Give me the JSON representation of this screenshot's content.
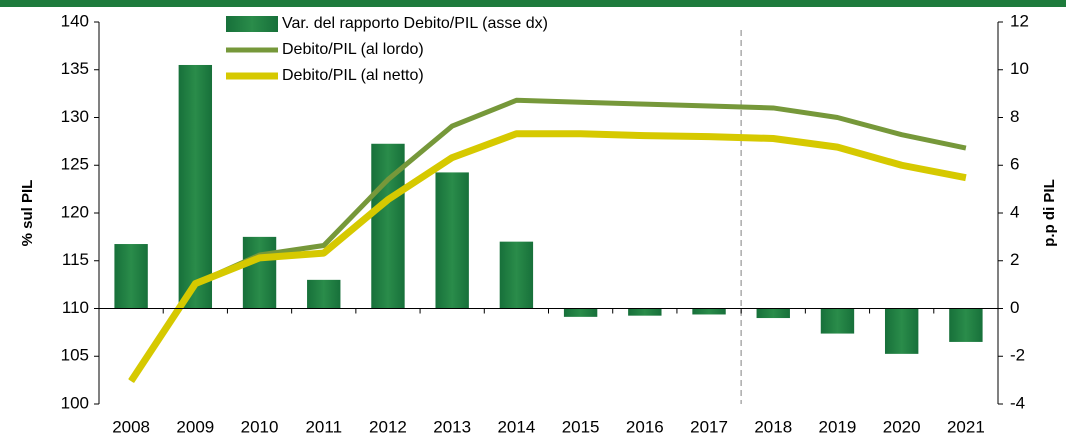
{
  "chart_data": {
    "type": "bar_line",
    "categories": [
      "2008",
      "2009",
      "2010",
      "2011",
      "2012",
      "2013",
      "2014",
      "2015",
      "2016",
      "2017",
      "2018",
      "2019",
      "2020",
      "2021"
    ],
    "series": [
      {
        "name": "Var. del rapporto Debito/PIL (asse dx)",
        "color": "#1e7b3c",
        "axis": "y2",
        "kind": "bar",
        "values": [
          2.7,
          10.2,
          3.0,
          1.2,
          6.9,
          5.7,
          2.8,
          -0.35,
          -0.3,
          -0.25,
          -0.4,
          -1.05,
          -1.9,
          -1.4
        ]
      },
      {
        "name": "Debito/PIL (al lordo)",
        "color": "#76983a",
        "axis": "y",
        "kind": "line",
        "values": [
          102.4,
          112.6,
          115.6,
          116.6,
          123.5,
          129.1,
          131.8,
          131.6,
          131.4,
          131.2,
          131.0,
          130.0,
          128.2,
          126.8
        ]
      },
      {
        "name": "Debito/PIL (al netto)",
        "color": "#d6c900",
        "axis": "y",
        "kind": "line",
        "values": [
          102.4,
          112.6,
          115.3,
          115.8,
          121.4,
          125.8,
          128.3,
          128.3,
          128.1,
          128.0,
          127.8,
          126.9,
          125.0,
          123.7
        ]
      }
    ],
    "ylabel": "% sul PIL",
    "y2label": "p.p di PIL",
    "ylim": [
      100,
      140
    ],
    "yticks": [
      100,
      105,
      110,
      115,
      120,
      125,
      130,
      135,
      140
    ],
    "y2lim": [
      -4,
      12
    ],
    "y2ticks": [
      -4,
      -2,
      0,
      2,
      4,
      6,
      8,
      10,
      12
    ]
  }
}
